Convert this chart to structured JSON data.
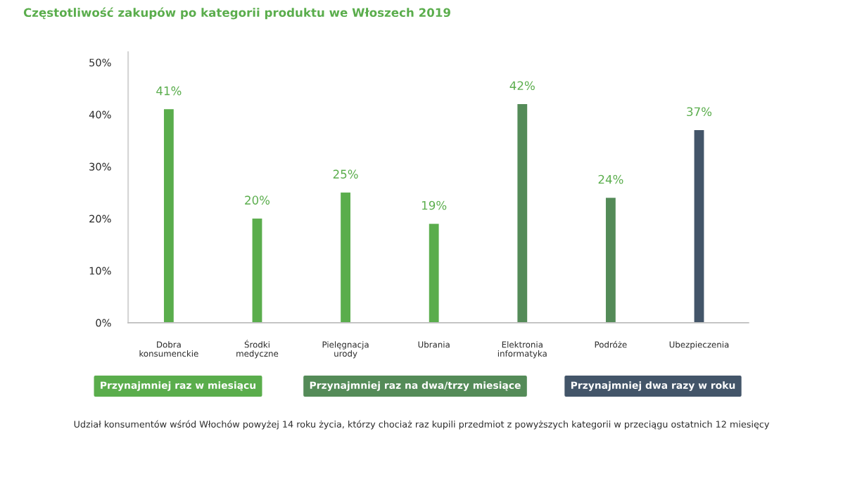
{
  "chart_data": {
    "type": "bar",
    "title": "Częstotliwość zakupów po kategorii produktu we Włoszech 2019",
    "categories": [
      "Dobra konsumenckie",
      "Środki medyczne",
      "Pielęgnacja urody",
      "Ubrania",
      "Elektronia informatyka",
      "Podróże",
      "Ubezpieczenia"
    ],
    "series": [
      {
        "name": "Przynajmniej raz w miesiącu",
        "color": "#5aad4c",
        "values": [
          41,
          20,
          25,
          19,
          null,
          null,
          null
        ],
        "value_labels": [
          "41%",
          "20%",
          "25%",
          "19%",
          null,
          null,
          null
        ]
      },
      {
        "name": "Przynajmniej raz na dwa/trzy miesiące",
        "color": "#548b58",
        "values": [
          null,
          null,
          null,
          null,
          42,
          24,
          null
        ],
        "value_labels": [
          null,
          null,
          null,
          null,
          "42%",
          "24%",
          null
        ]
      },
      {
        "name": "Przynajmniej dwa razy w roku",
        "color": "#435569",
        "values": [
          null,
          null,
          null,
          null,
          null,
          null,
          37
        ],
        "value_labels": [
          null,
          null,
          null,
          null,
          null,
          null,
          "37%"
        ]
      }
    ],
    "ylim": [
      0,
      52
    ],
    "yticks": [
      {
        "value": 0,
        "label": "0%"
      },
      {
        "value": 10,
        "label": "10%"
      },
      {
        "value": 20,
        "label": "20%"
      },
      {
        "value": 30,
        "label": "30%"
      },
      {
        "value": 40,
        "label": "40%"
      },
      {
        "value": 50,
        "label": "50%"
      }
    ],
    "grid": false,
    "legend": "bottom",
    "annotations": [
      "Udział konsumentów wśród Włochów powyżej 14 roku życia, którzy chociaż raz kupili przedmiot z powyższych kategorii w przeciągu ostatnich 12 miesięcy"
    ]
  }
}
